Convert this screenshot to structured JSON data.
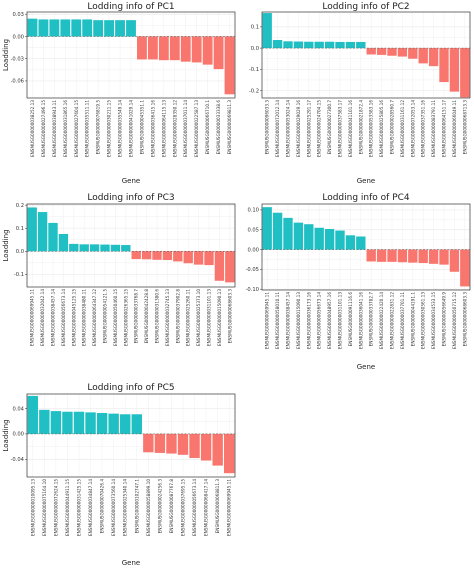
{
  "colors": {
    "positive": "#1fbfc4",
    "negative": "#f8766d",
    "grid": "#ebebeb",
    "zero_line": "#555555",
    "panel_border": "#333333"
  },
  "chart_data": [
    {
      "type": "bar",
      "title": "Lodding info of PC1",
      "xlabel": "Gene",
      "ylabel": "Loadding",
      "ylim": [
        -0.083,
        0.033
      ],
      "yticks": [
        0.03,
        0.0,
        -0.03,
        -0.06
      ],
      "ytick_labels": [
        "0.03",
        "0.00",
        "-0.03",
        "-0.06"
      ],
      "grid": true,
      "categories": [
        "ENSMUSG00000038252.13",
        "ENSMUSG00000027496.15",
        "ENSMUSG00000038943.11",
        "ENSMUSG00000031865.16",
        "ENSMUSG00000027604.15",
        "ENSMUSG00000035511.11",
        "ENSMUSG00000076819.5",
        "ENSMUSG00000030211.15",
        "ENSMUSG00000035549.14",
        "ENSMUSG00000041029.14",
        "ENSMUSG00000045351.1",
        "ENSMUSG00000036415.16",
        "ENSMUSG00000064115.13",
        "ENSMUSG00000028350.12",
        "ENSMUSG00000037011.14",
        "ENSMUSG00000022587.13",
        "ENSMUSG00000066710.1",
        "ENSMUSG00000033338.6",
        "ENSMUSG00000069811.3"
      ],
      "values": [
        0.024,
        0.023,
        0.023,
        0.023,
        0.023,
        0.023,
        0.022,
        0.022,
        0.022,
        0.022,
        -0.031,
        -0.031,
        -0.032,
        -0.032,
        -0.034,
        -0.035,
        -0.038,
        -0.044,
        -0.078
      ]
    },
    {
      "type": "bar",
      "title": "Lodding info of PC2",
      "xlabel": "Gene",
      "ylabel": "",
      "ylim": [
        -0.235,
        0.17
      ],
      "yticks": [
        0.1,
        0.0,
        -0.1,
        -0.2
      ],
      "ytick_labels": [
        "0.1",
        "0.0",
        "-0.1",
        "-0.2"
      ],
      "grid": true,
      "categories": [
        "ENSMUSG00000096033.3",
        "ENSMUSG00000072012.14",
        "ENSMUSG00000053024.14",
        "ENSMUSG00000029029.16",
        "ENSMUSG00000025291.17",
        "ENSMUSG00000024704.15",
        "ENSMUSG00000027300.7",
        "ENSMUSG00000037583.17",
        "ENSMUSG00000041101.16",
        "ENSMUSG00000021872.4",
        "ENSMUSG00000053583.16",
        "ENSMUSG00000025805.16",
        "ENSMUSG00000028560.7",
        "ENSMUSG00000031161.12",
        "ENSMUSG00000072053.14",
        "ENSMUSG00000037351.16",
        "ENSMUSG00000083791.11",
        "ENSMUSG00000064151.17",
        "ENSMUSG00000066049.11",
        "ENSMUSG00000068713.3"
      ],
      "values": [
        0.165,
        0.038,
        0.032,
        0.031,
        0.03,
        0.03,
        0.03,
        0.029,
        0.029,
        0.029,
        -0.03,
        -0.032,
        -0.036,
        -0.04,
        -0.05,
        -0.072,
        -0.085,
        -0.16,
        -0.205,
        -0.232
      ]
    },
    {
      "type": "bar",
      "title": "Lodding info of PC3",
      "xlabel": "",
      "ylabel": "Loadding",
      "ylim": [
        -0.155,
        0.205
      ],
      "yticks": [
        0.2,
        0.1,
        0.0,
        -0.1
      ],
      "ytick_labels": [
        "0.2",
        "0.1",
        "0.0",
        "-0.1"
      ],
      "grid": true,
      "categories": [
        "ENSMUSG00000069945.11",
        "ENSMUSG00000032042.14",
        "ENSMUSG00000038457.14",
        "ENSMUSG00000056673.14",
        "ENSMUSG00000045125.15",
        "ENSMUSG00000038480.11",
        "ENSMUSG00000064347.12",
        "ENSMUSG00000054121.5",
        "ENSMUSG00000050460.15",
        "ENSMUSG00000026365.15",
        "ENSMUSG00000033768.7",
        "ENSMUSG00000042428.8",
        "ENSMUSG00000031380.6",
        "ENSMUSG00000032745.13",
        "ENSMUSG00000037902.8",
        "ENSMUSG00000025260.11",
        "ENSMUSG00000025373.10",
        "ENSMUSG00000031101.13",
        "ENSMUSG00000015090.13",
        "ENSMUSG00000068603.3"
      ],
      "values": [
        0.19,
        0.17,
        0.123,
        0.075,
        0.032,
        0.03,
        0.03,
        0.029,
        0.028,
        0.027,
        -0.034,
        -0.035,
        -0.037,
        -0.038,
        -0.044,
        -0.052,
        -0.058,
        -0.06,
        -0.128,
        -0.135
      ]
    },
    {
      "type": "bar",
      "title": "Lodding info of PC4",
      "xlabel": "Gene",
      "ylabel": "",
      "ylim": [
        -0.102,
        0.115
      ],
      "yticks": [
        0.1,
        0.05,
        0.0,
        -0.05,
        -0.1
      ],
      "ytick_labels": [
        "0.10",
        "0.05",
        "0.00",
        "-0.05",
        "-0.10"
      ],
      "grid": true,
      "categories": [
        "ENSMUSG00000069945.11",
        "ENSMUSG00000058010.11",
        "ENSMUSG00000038457.14",
        "ENSMUSG00000015090.13",
        "ENSMUSG00000036173.16",
        "ENSMUSG00000056673.14",
        "ENSMUSG00000048957.16",
        "ENSMUSG00000031101.13",
        "ENSMUSG00000091116.6",
        "ENSMUSG00000036041.16",
        "ENSMUSG00000033782.7",
        "ENSMUSG00000022420.14",
        "ENSMUSG00000022831.12",
        "ENSMUSG00000037701.11",
        "ENSMUSG00000044191.1",
        "ENSMUSG00000030561.13",
        "ENSMUSG00000034533.15",
        "ENSMUSG00000056649.9",
        "ENSMUSG00000050715.12",
        "ENSMUSG00000068603.3"
      ],
      "values": [
        0.107,
        0.093,
        0.08,
        0.068,
        0.064,
        0.055,
        0.052,
        0.048,
        0.036,
        0.033,
        -0.03,
        -0.031,
        -0.031,
        -0.032,
        -0.033,
        -0.034,
        -0.036,
        -0.038,
        -0.056,
        -0.093
      ]
    },
    {
      "type": "bar",
      "title": "Lodding info of PC5",
      "xlabel": "Gene",
      "ylabel": "Loadding",
      "ylim": [
        -0.068,
        0.063
      ],
      "yticks": [
        0.04,
        0.0,
        -0.04
      ],
      "ytick_labels": [
        "0.04",
        "0.00",
        "-0.04"
      ],
      "grid": true,
      "categories": [
        "ENSMUSG00000010095.13",
        "ENSMUSG00000075164.10",
        "ENSMUSG00000072624.15",
        "ENSMUSG00000044911.15",
        "ENSMUSG00000031425.15",
        "ENSMUSG00000034847.14",
        "ENSMUSG00000070426.4",
        "ENSMUSG00000073560.14",
        "ENSMUSG00000025340.14",
        "ENSMUSG00000102747.1",
        "ENSMUSG00000058899.10",
        "ENSMUSG00000024256.3",
        "ENSMUSG00000087767.8",
        "ENSMUSG00000037695.15",
        "ENSMUSG00000056673.14",
        "ENSMUSG00000068417.14",
        "ENSMUSG00000068811.3",
        "ENSMUSG00000069945.11"
      ],
      "values": [
        0.06,
        0.038,
        0.036,
        0.035,
        0.035,
        0.034,
        0.033,
        0.032,
        0.031,
        0.031,
        -0.029,
        -0.03,
        -0.031,
        -0.033,
        -0.038,
        -0.042,
        -0.05,
        -0.062
      ]
    }
  ]
}
